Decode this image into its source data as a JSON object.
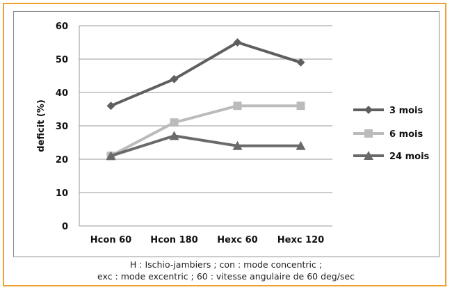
{
  "colors": {
    "frame": "#f0a030",
    "grid": "#9a9a9a",
    "axis_text": "#111111"
  },
  "caption": {
    "line1": "H : Ischio-jambiers ; con : mode concentric ;",
    "line2": "exc : mode excentric ; 60 : vitesse angulaire de 60 deg/sec"
  },
  "chart_data": {
    "type": "line",
    "title": "",
    "xlabel": "",
    "ylabel": "deficit (%)",
    "ylim": [
      0,
      60
    ],
    "yticks": [
      "0",
      "10",
      "20",
      "30",
      "40",
      "50",
      "60"
    ],
    "grid": true,
    "legend_position": "right",
    "categories": [
      "Hcon 60",
      "Hcon 180",
      "Hexc 60",
      "Hexc 120"
    ],
    "series": [
      {
        "name": "3 mois",
        "values": [
          36,
          44,
          55,
          49
        ],
        "color": "#5f5f5f",
        "marker": "diamond"
      },
      {
        "name": "6 mois",
        "values": [
          21,
          31,
          36,
          36
        ],
        "color": "#bbbbbb",
        "marker": "square"
      },
      {
        "name": "24 mois",
        "values": [
          21,
          27,
          24,
          24
        ],
        "color": "#6a6a6a",
        "marker": "triangle"
      }
    ]
  }
}
